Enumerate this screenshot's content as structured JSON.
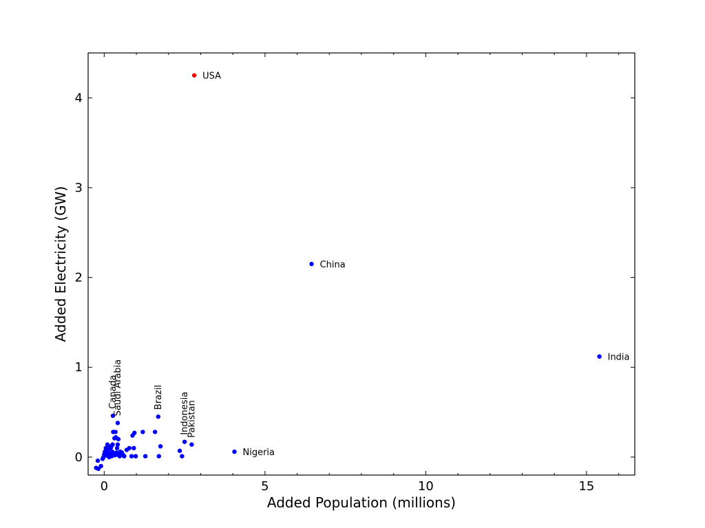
{
  "chart_data": {
    "type": "scatter",
    "title": "",
    "xlabel": "Added Population (millions)",
    "ylabel": "Added Electricity (GW)",
    "xlim": [
      -0.5,
      16.5
    ],
    "ylim": [
      -0.2,
      4.5
    ],
    "xticks": [
      0,
      5,
      10,
      15
    ],
    "yticks": [
      0,
      1,
      2,
      3,
      4
    ],
    "colors": {
      "default": "#0000ff",
      "highlight": "#ff0000"
    },
    "labeled_points": [
      {
        "label": "USA",
        "x": 2.8,
        "y": 4.25,
        "highlight": true,
        "orient": "horizontal"
      },
      {
        "label": "China",
        "x": 6.45,
        "y": 2.15,
        "highlight": false,
        "orient": "horizontal"
      },
      {
        "label": "India",
        "x": 15.4,
        "y": 1.12,
        "highlight": false,
        "orient": "horizontal"
      },
      {
        "label": "Nigeria",
        "x": 4.05,
        "y": 0.06,
        "highlight": false,
        "orient": "horizontal"
      },
      {
        "label": "Canada",
        "x": 0.27,
        "y": 0.46,
        "highlight": false,
        "orient": "vertical"
      },
      {
        "label": "Saudi Arabia",
        "x": 0.42,
        "y": 0.38,
        "highlight": false,
        "orient": "vertical"
      },
      {
        "label": "Brazil",
        "x": 1.68,
        "y": 0.45,
        "highlight": false,
        "orient": "vertical"
      },
      {
        "label": "Indonesia",
        "x": 2.5,
        "y": 0.17,
        "highlight": false,
        "orient": "vertical"
      },
      {
        "label": "Pakistan",
        "x": 2.72,
        "y": 0.14,
        "highlight": false,
        "orient": "vertical"
      }
    ],
    "points": [
      [
        -0.25,
        -0.12
      ],
      [
        -0.18,
        -0.13
      ],
      [
        -0.2,
        -0.04
      ],
      [
        -0.1,
        -0.1
      ],
      [
        -0.05,
        -0.02
      ],
      [
        -0.02,
        0.0
      ],
      [
        0.0,
        0.03
      ],
      [
        0.02,
        0.06
      ],
      [
        0.05,
        0.1
      ],
      [
        0.06,
        0.02
      ],
      [
        0.08,
        0.05
      ],
      [
        0.1,
        0.14
      ],
      [
        0.12,
        0.08
      ],
      [
        0.14,
        0.12
      ],
      [
        0.15,
        0.0
      ],
      [
        0.17,
        0.04
      ],
      [
        0.18,
        0.03
      ],
      [
        0.2,
        0.1
      ],
      [
        0.22,
        0.12
      ],
      [
        0.23,
        0.01
      ],
      [
        0.25,
        0.06
      ],
      [
        0.26,
        0.14
      ],
      [
        0.28,
        0.28
      ],
      [
        0.3,
        0.03
      ],
      [
        0.32,
        0.21
      ],
      [
        0.33,
        0.02
      ],
      [
        0.35,
        0.28
      ],
      [
        0.36,
        0.22
      ],
      [
        0.38,
        0.05
      ],
      [
        0.4,
        0.1
      ],
      [
        0.42,
        0.14
      ],
      [
        0.44,
        0.2
      ],
      [
        0.45,
        0.02
      ],
      [
        0.48,
        0.01
      ],
      [
        0.5,
        0.06
      ],
      [
        0.52,
        0.03
      ],
      [
        0.55,
        0.05
      ],
      [
        0.6,
        0.02
      ],
      [
        0.62,
        0.01
      ],
      [
        0.7,
        0.08
      ],
      [
        0.78,
        0.1
      ],
      [
        0.85,
        0.01
      ],
      [
        0.88,
        0.24
      ],
      [
        0.92,
        0.1
      ],
      [
        0.94,
        0.27
      ],
      [
        0.98,
        0.01
      ],
      [
        1.2,
        0.28
      ],
      [
        1.28,
        0.01
      ],
      [
        1.58,
        0.28
      ],
      [
        1.7,
        0.01
      ],
      [
        1.75,
        0.12
      ],
      [
        2.35,
        0.07
      ],
      [
        2.42,
        0.01
      ]
    ]
  }
}
